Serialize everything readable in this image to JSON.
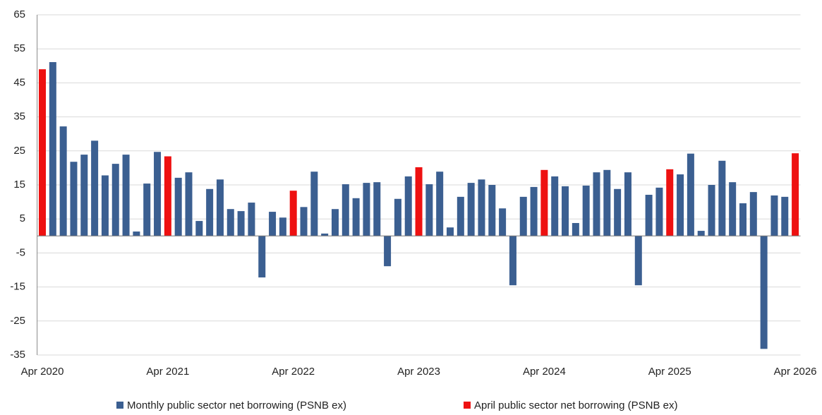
{
  "chart_data": {
    "type": "bar",
    "categories": [
      "Apr 2020",
      null,
      null,
      null,
      null,
      null,
      null,
      null,
      null,
      null,
      null,
      null,
      "Apr 2021",
      null,
      null,
      null,
      null,
      null,
      null,
      null,
      null,
      null,
      null,
      null,
      "Apr 2022",
      null,
      null,
      null,
      null,
      null,
      null,
      null,
      null,
      null,
      null,
      null,
      "Apr 2023",
      null,
      null,
      null,
      null,
      null,
      null,
      null,
      null,
      null,
      null,
      null,
      "Apr 2024",
      null,
      null,
      null,
      null,
      null,
      null,
      null,
      null,
      null,
      null,
      null,
      "Apr 2025",
      null,
      null,
      null,
      null,
      null,
      null,
      null,
      null,
      null,
      null,
      null,
      "Apr 2026"
    ],
    "series": [
      {
        "name": "Monthly public sector net borrowing (PSNB ex)",
        "color": "#3b5f91",
        "values": [
          null,
          51.1,
          32.2,
          21.8,
          23.9,
          28.0,
          17.8,
          21.2,
          23.9,
          1.3,
          15.4,
          24.7,
          null,
          17.1,
          18.7,
          4.4,
          13.8,
          16.6,
          7.9,
          7.3,
          9.8,
          -12.2,
          7.1,
          5.4,
          null,
          8.5,
          18.9,
          0.7,
          7.9,
          15.2,
          11.1,
          15.6,
          15.8,
          -8.9,
          10.9,
          17.5,
          null,
          15.2,
          18.9,
          2.5,
          11.5,
          15.6,
          16.6,
          15.0,
          8.1,
          -14.5,
          11.5,
          14.4,
          null,
          17.5,
          14.6,
          3.8,
          14.8,
          18.7,
          19.4,
          13.8,
          18.7,
          -14.5,
          12.1,
          14.2,
          null,
          18.1,
          24.2,
          1.5,
          15.0,
          22.1,
          15.8,
          9.6,
          12.9,
          -33.2,
          11.9,
          11.5,
          null
        ]
      },
      {
        "name": "April public sector net borrowing (PSNB ex)",
        "color": "#ee1111",
        "values": [
          49.0,
          null,
          null,
          null,
          null,
          null,
          null,
          null,
          null,
          null,
          null,
          null,
          23.4,
          null,
          null,
          null,
          null,
          null,
          null,
          null,
          null,
          null,
          null,
          null,
          13.3,
          null,
          null,
          null,
          null,
          null,
          null,
          null,
          null,
          null,
          null,
          null,
          20.2,
          null,
          null,
          null,
          null,
          null,
          null,
          null,
          null,
          null,
          null,
          null,
          19.4,
          null,
          null,
          null,
          null,
          null,
          null,
          null,
          null,
          null,
          null,
          null,
          19.6,
          null,
          null,
          null,
          null,
          null,
          null,
          null,
          null,
          null,
          null,
          null,
          24.3
        ]
      }
    ],
    "ylim": [
      -35,
      65
    ],
    "yticks": [
      -35,
      -25,
      -15,
      -5,
      5,
      15,
      25,
      35,
      45,
      55,
      65
    ],
    "grid": true,
    "legend": "bottom"
  }
}
